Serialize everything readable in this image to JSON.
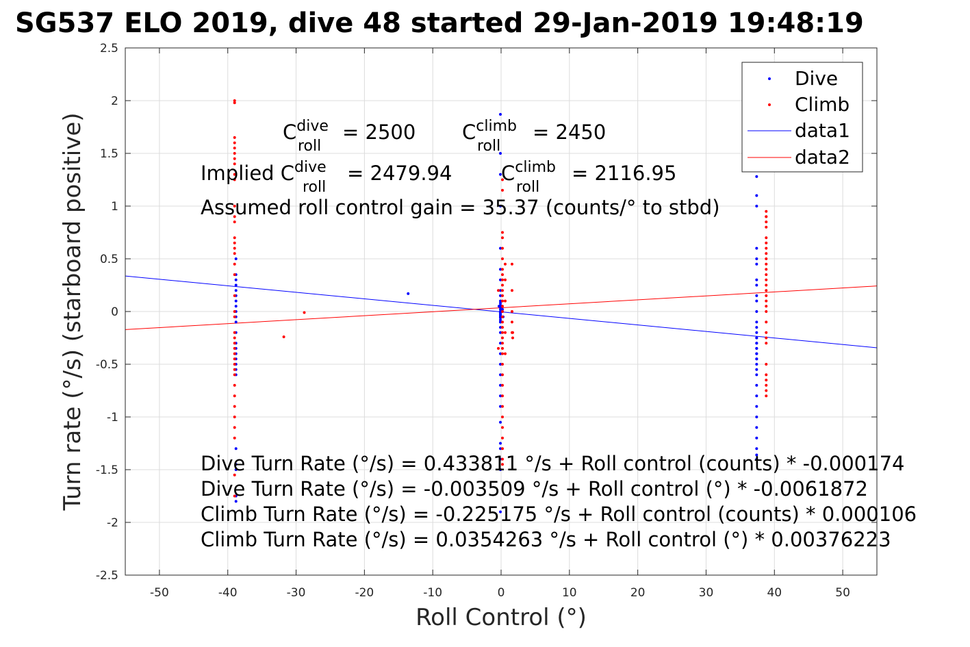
{
  "chart_data": {
    "type": "scatter",
    "title": "SG537 ELO 2019, dive 48 started 29-Jan-2019 19:48:19",
    "xlabel": "Roll Control (°)",
    "ylabel": "Turn rate (°/s) (starboard positive)",
    "xlim": [
      -55,
      55
    ],
    "ylim": [
      -2.5,
      2.5
    ],
    "xticks": [
      -50,
      -40,
      -30,
      -20,
      -10,
      0,
      10,
      20,
      30,
      40,
      50
    ],
    "xtick_labels": [
      "-50",
      "-40",
      "-30",
      "-20",
      "-10",
      "0",
      "10",
      "20",
      "30",
      "40",
      "50"
    ],
    "yticks": [
      -2.5,
      -2,
      -1.5,
      -1,
      -0.5,
      0,
      0.5,
      1,
      1.5,
      2,
      2.5
    ],
    "ytick_labels": [
      "-2.5",
      "-2",
      "-1.5",
      "-1",
      "-0.5",
      "0",
      "0.5",
      "1",
      "1.5",
      "2",
      "2.5"
    ],
    "grid": true,
    "legend_position": "top-right",
    "colors": {
      "dive": "#0000ff",
      "climb": "#ff0000"
    },
    "series": [
      {
        "name": "Dive",
        "kind": "points",
        "color": "#0000ff",
        "x": [
          -38.8,
          -38.8,
          -38.8,
          -38.8,
          -38.8,
          -38.8,
          -38.8,
          -38.8,
          -38.8,
          -38.8,
          -38.8,
          -38.8,
          -38.8,
          -38.8,
          -38.8,
          -38.8,
          -38.8,
          -38.8,
          -38.8,
          -38.8,
          -38.8,
          -38.8,
          -38.8,
          -38.8,
          -13.6,
          -0.1,
          -0.1,
          -0.1,
          -0.1,
          -0.1,
          -0.1,
          -0.1,
          -0.1,
          -0.1,
          -0.1,
          -0.1,
          -0.1,
          -0.1,
          -0.1,
          -0.1,
          -0.1,
          -0.1,
          -0.1,
          -0.1,
          -0.1,
          -0.1,
          -0.1,
          -0.1,
          -0.1,
          -0.1,
          -0.1,
          -0.1,
          -0.1,
          -0.1,
          -0.1,
          -0.1,
          -0.1,
          -0.1,
          -0.1,
          -0.1,
          -0.1,
          -0.1,
          -0.1,
          -0.1,
          0.1,
          0.2,
          0.3,
          -0.3,
          0.2,
          37.4,
          37.4,
          37.4,
          37.4,
          37.4,
          37.4,
          37.4,
          37.4,
          37.4,
          37.4,
          37.4,
          37.4,
          37.4,
          37.4,
          37.4,
          37.4,
          37.4,
          37.4,
          37.4,
          37.4,
          37.4,
          37.4,
          37.4,
          37.4,
          37.4,
          37.4,
          37.4,
          37.4,
          37.4,
          37.4,
          37.4,
          37.4,
          37.4,
          37.4,
          37.4,
          37.4
        ],
        "y": [
          0.5,
          0.3,
          0.25,
          0.2,
          0.15,
          0.1,
          0.05,
          0.0,
          -0.05,
          -0.1,
          -0.2,
          -0.3,
          -0.35,
          -0.4,
          -0.45,
          -0.5,
          -0.55,
          -0.6,
          -1.3,
          -1.45,
          -1.5,
          -1.75,
          -1.8,
          0.35,
          0.17,
          1.87,
          1.5,
          1.3,
          1.0,
          0.6,
          0.4,
          0.3,
          0.2,
          0.15,
          0.1,
          0.08,
          0.06,
          0.04,
          0.02,
          0.0,
          -0.01,
          -0.02,
          -0.03,
          -0.04,
          -0.05,
          -0.06,
          -0.08,
          -0.1,
          -0.15,
          -0.2,
          -0.3,
          -0.4,
          -0.5,
          -0.6,
          -0.7,
          -0.8,
          -0.9,
          -1.05,
          -1.25,
          -1.3,
          -1.4,
          -1.5,
          -1.9,
          -0.1,
          0.05,
          0.0,
          -0.05,
          0.05,
          0.02,
          1.28,
          1.1,
          1.0,
          0.6,
          0.5,
          0.45,
          0.3,
          0.25,
          0.15,
          0.1,
          0.0,
          -0.1,
          -0.15,
          -0.2,
          -0.25,
          -0.3,
          -0.35,
          -0.4,
          -0.45,
          -0.5,
          -0.55,
          -0.6,
          -0.7,
          -0.8,
          -0.9,
          -1.0,
          -1.1,
          -1.2,
          -1.3,
          -1.36,
          -1.4,
          -0.25,
          -0.3,
          -0.35,
          -0.4,
          -0.45
        ]
      },
      {
        "name": "Climb",
        "kind": "points",
        "color": "#ff0000",
        "x": [
          -39,
          -39,
          -39,
          -39,
          -39,
          -39,
          -39,
          -39,
          -39,
          -39,
          -39,
          -39,
          -39,
          -39,
          -39,
          -39,
          -39,
          -39,
          -39,
          -39,
          -39,
          -39,
          -39,
          -39,
          -39,
          -39,
          -39,
          -39,
          -39,
          -39,
          -39,
          -39,
          -39,
          -39,
          -39,
          -39,
          -39,
          -39,
          -39,
          -31.8,
          -28.8,
          0.2,
          0.2,
          0.2,
          0.2,
          0.2,
          0.2,
          0.2,
          0.2,
          0.2,
          0.2,
          0.2,
          0.2,
          0.2,
          0.2,
          0.2,
          0.2,
          0.2,
          0.2,
          0.2,
          0.2,
          0.2,
          0.2,
          0.2,
          0.2,
          0.2,
          0.2,
          0.2,
          0.2,
          0.2,
          0.2,
          0.2,
          0.2,
          0.2,
          0.2,
          -0.4,
          -0.4,
          0.6,
          0.6,
          0.6,
          0.6,
          0.6,
          1.6,
          1.6,
          1.6,
          1.6,
          1.6,
          1.7,
          1.7,
          38.8,
          38.8,
          38.8,
          38.8,
          38.8,
          38.8,
          38.8,
          38.8,
          38.8,
          38.8,
          38.8,
          38.8,
          38.8,
          38.8,
          38.8,
          38.8,
          38.8,
          38.8,
          38.8,
          38.8,
          38.8,
          38.8,
          38.8,
          38.8,
          38.8,
          38.8,
          38.8,
          38.8,
          38.8,
          38.8
        ],
        "y": [
          2.0,
          1.98,
          1.65,
          1.6,
          1.55,
          1.5,
          1.45,
          1.4,
          1.3,
          1.25,
          1.0,
          0.9,
          0.85,
          0.7,
          0.65,
          0.6,
          0.55,
          0.45,
          0.35,
          0.15,
          0.0,
          -0.05,
          -0.2,
          -0.25,
          -0.3,
          -0.35,
          -0.4,
          -0.45,
          -0.5,
          -0.55,
          -0.6,
          -0.7,
          -0.8,
          -0.9,
          -1.0,
          -1.1,
          -1.2,
          -1.55,
          -1.75,
          -0.24,
          -0.01,
          1.25,
          1.15,
          0.75,
          0.7,
          0.6,
          0.5,
          0.4,
          0.35,
          0.3,
          0.25,
          0.2,
          0.15,
          0.1,
          0.05,
          0.0,
          -0.05,
          -0.1,
          -0.15,
          -0.2,
          -0.25,
          -0.3,
          -0.35,
          -0.4,
          -0.5,
          -0.6,
          -0.7,
          -0.8,
          -0.9,
          -1.0,
          -1.1,
          -1.2,
          -1.3,
          -1.4,
          -1.45,
          0.2,
          -0.35,
          0.45,
          0.3,
          0.1,
          -0.2,
          -0.4,
          0.45,
          0.2,
          0.0,
          -0.1,
          -0.2,
          -0.25,
          -0.2,
          0.95,
          0.9,
          0.8,
          0.7,
          0.65,
          0.6,
          0.55,
          0.5,
          0.45,
          0.4,
          0.35,
          0.3,
          0.25,
          0.2,
          0.15,
          0.1,
          0.05,
          0.0,
          -0.1,
          -0.2,
          -0.25,
          -0.3,
          -0.5,
          -0.6,
          -0.65,
          -0.7,
          -0.75,
          -0.8,
          0.9,
          0.85
        ]
      },
      {
        "name": "data1",
        "kind": "line",
        "color": "#0000ff",
        "x": [
          -55,
          55
        ],
        "y": [
          0.3368,
          -0.3438
        ]
      },
      {
        "name": "data2",
        "kind": "line",
        "color": "#ff0000",
        "x": [
          -55,
          55
        ],
        "y": [
          -0.1715,
          0.2423
        ]
      }
    ],
    "annotations": {
      "cdive_base": "C",
      "cdive_sup": "dive",
      "cdive_sub": "roll",
      "cdive_value": "= 2500",
      "cclimb_base": "C",
      "cclimb_sup": "climb",
      "cclimb_sub": "roll",
      "cclimb_value": "= 2450",
      "implied_prefix": "Implied C",
      "implied_dive_sup": "dive",
      "implied_dive_sub": "roll",
      "implied_dive_value": "= 2479.94",
      "implied_climb_base": "C",
      "implied_climb_sup": "climb",
      "implied_climb_sub": "roll",
      "implied_climb_value": "= 2116.95",
      "gain": "Assumed roll control gain = 35.37 (counts/° to stbd)",
      "eq1": "Dive Turn Rate (°/s) = 0.433811 °/s + Roll control (counts) * -0.000174",
      "eq2": "Dive Turn Rate (°/s) = -0.003509 °/s + Roll control (°) * -0.0061872",
      "eq3": "Climb Turn Rate (°/s) = -0.225175 °/s + Roll control (counts) * 0.000106",
      "eq4": "Climb Turn Rate (°/s) = 0.0354263 °/s + Roll control (°) * 0.00376223"
    }
  }
}
